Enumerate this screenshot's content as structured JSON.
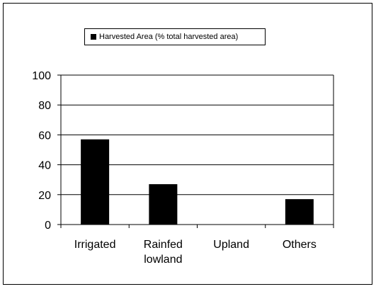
{
  "chart_data": {
    "type": "bar",
    "categories": [
      [
        "Irrigated"
      ],
      [
        "Rainfed",
        "lowland"
      ],
      [
        "Upland"
      ],
      [
        "Others"
      ]
    ],
    "series": [
      {
        "name": "Harvested Area (% total harvested area)",
        "values": [
          57,
          27,
          0,
          17
        ],
        "color": "#000000"
      }
    ],
    "ylim": [
      0,
      100
    ],
    "yticks": [
      0,
      20,
      40,
      60,
      80,
      100
    ],
    "grid": true,
    "legend_position": "top",
    "title": "",
    "xlabel": "",
    "ylabel": ""
  }
}
